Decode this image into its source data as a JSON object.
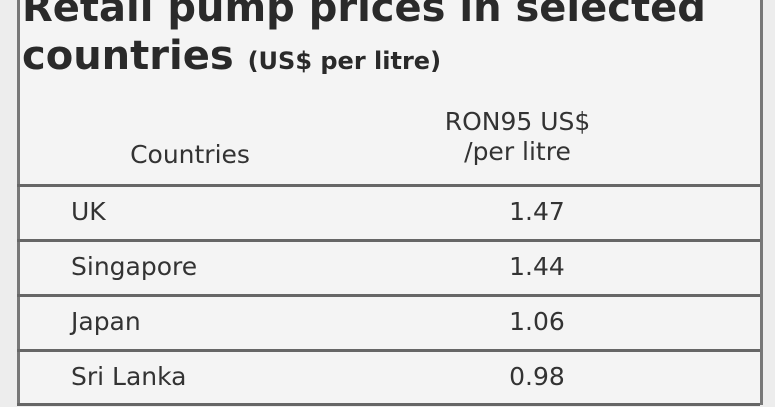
{
  "header": {
    "title": "Retail pump prices in selected countries",
    "subtitle": "(US$ per litre)"
  },
  "table": {
    "columns": [
      "Countries",
      "RON95 US$ /per litre"
    ],
    "rows": [
      [
        "UK",
        "1.47"
      ],
      [
        "Singapore",
        "1.44"
      ],
      [
        "Japan",
        "1.06"
      ],
      [
        "Sri Lanka",
        "0.98"
      ]
    ]
  }
}
